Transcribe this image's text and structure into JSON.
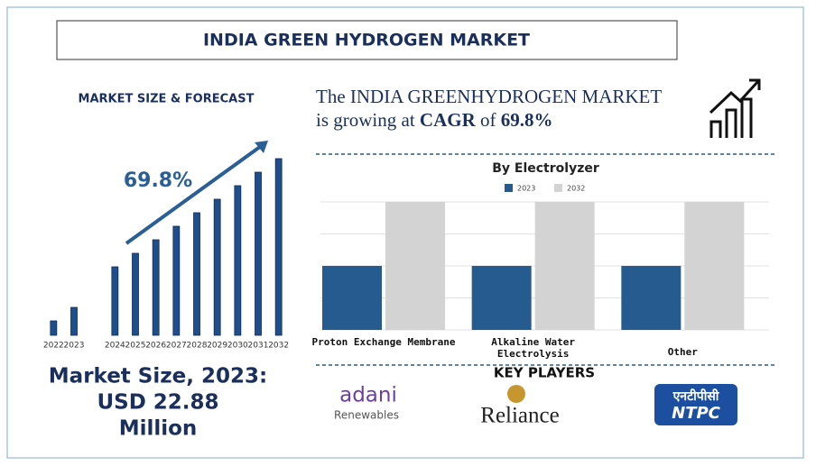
{
  "header": {
    "title": "INDIA GREEN HYDROGEN MARKET"
  },
  "forecast": {
    "title": "MARKET SIZE & FORECAST",
    "market_size": [
      "Market Size, 2023:",
      "USD 22.88",
      "Million"
    ]
  },
  "cagr": {
    "line_1": "The INDIA GREENHYDROGEN MARKET",
    "line_2": [
      "is growing at",
      "CAGR",
      "of",
      "69.8%"
    ]
  },
  "key_players": {
    "title": "KEY PLAYERS",
    "logos": [
      {
        "name": "adani",
        "sub": "Renewables"
      },
      {
        "name": "Reliance"
      },
      {
        "name": "NTPC",
        "sub": "एनटीपीसी"
      }
    ]
  },
  "chart_data": [
    {
      "type": "bar",
      "annotation": "69.8%",
      "categories": [
        "2022",
        "2023",
        null,
        "2024",
        "2025",
        "2026",
        "2027",
        "2028",
        "2029",
        "2030",
        "2031",
        "2032"
      ],
      "values": [
        16,
        31,
        null,
        76,
        91,
        106,
        121,
        136,
        151,
        166,
        181,
        196
      ],
      "color": "#1f4e8c",
      "ylim": [
        0,
        200
      ]
    },
    {
      "type": "grouped-bar",
      "title": "By Electrolyzer",
      "categories": [
        "Proton Exchange Membrane",
        "Alkaline Water Electrolysis",
        "Other"
      ],
      "series": [
        {
          "name": "2023",
          "color": "#255b8e",
          "values": [
            2,
            2,
            2
          ]
        },
        {
          "name": "2032",
          "color": "#d3d3d3",
          "values": [
            4,
            4,
            4
          ]
        }
      ],
      "ylim": [
        0,
        4
      ],
      "yticks": [
        0,
        1,
        2,
        3,
        4
      ],
      "grid": true
    }
  ]
}
